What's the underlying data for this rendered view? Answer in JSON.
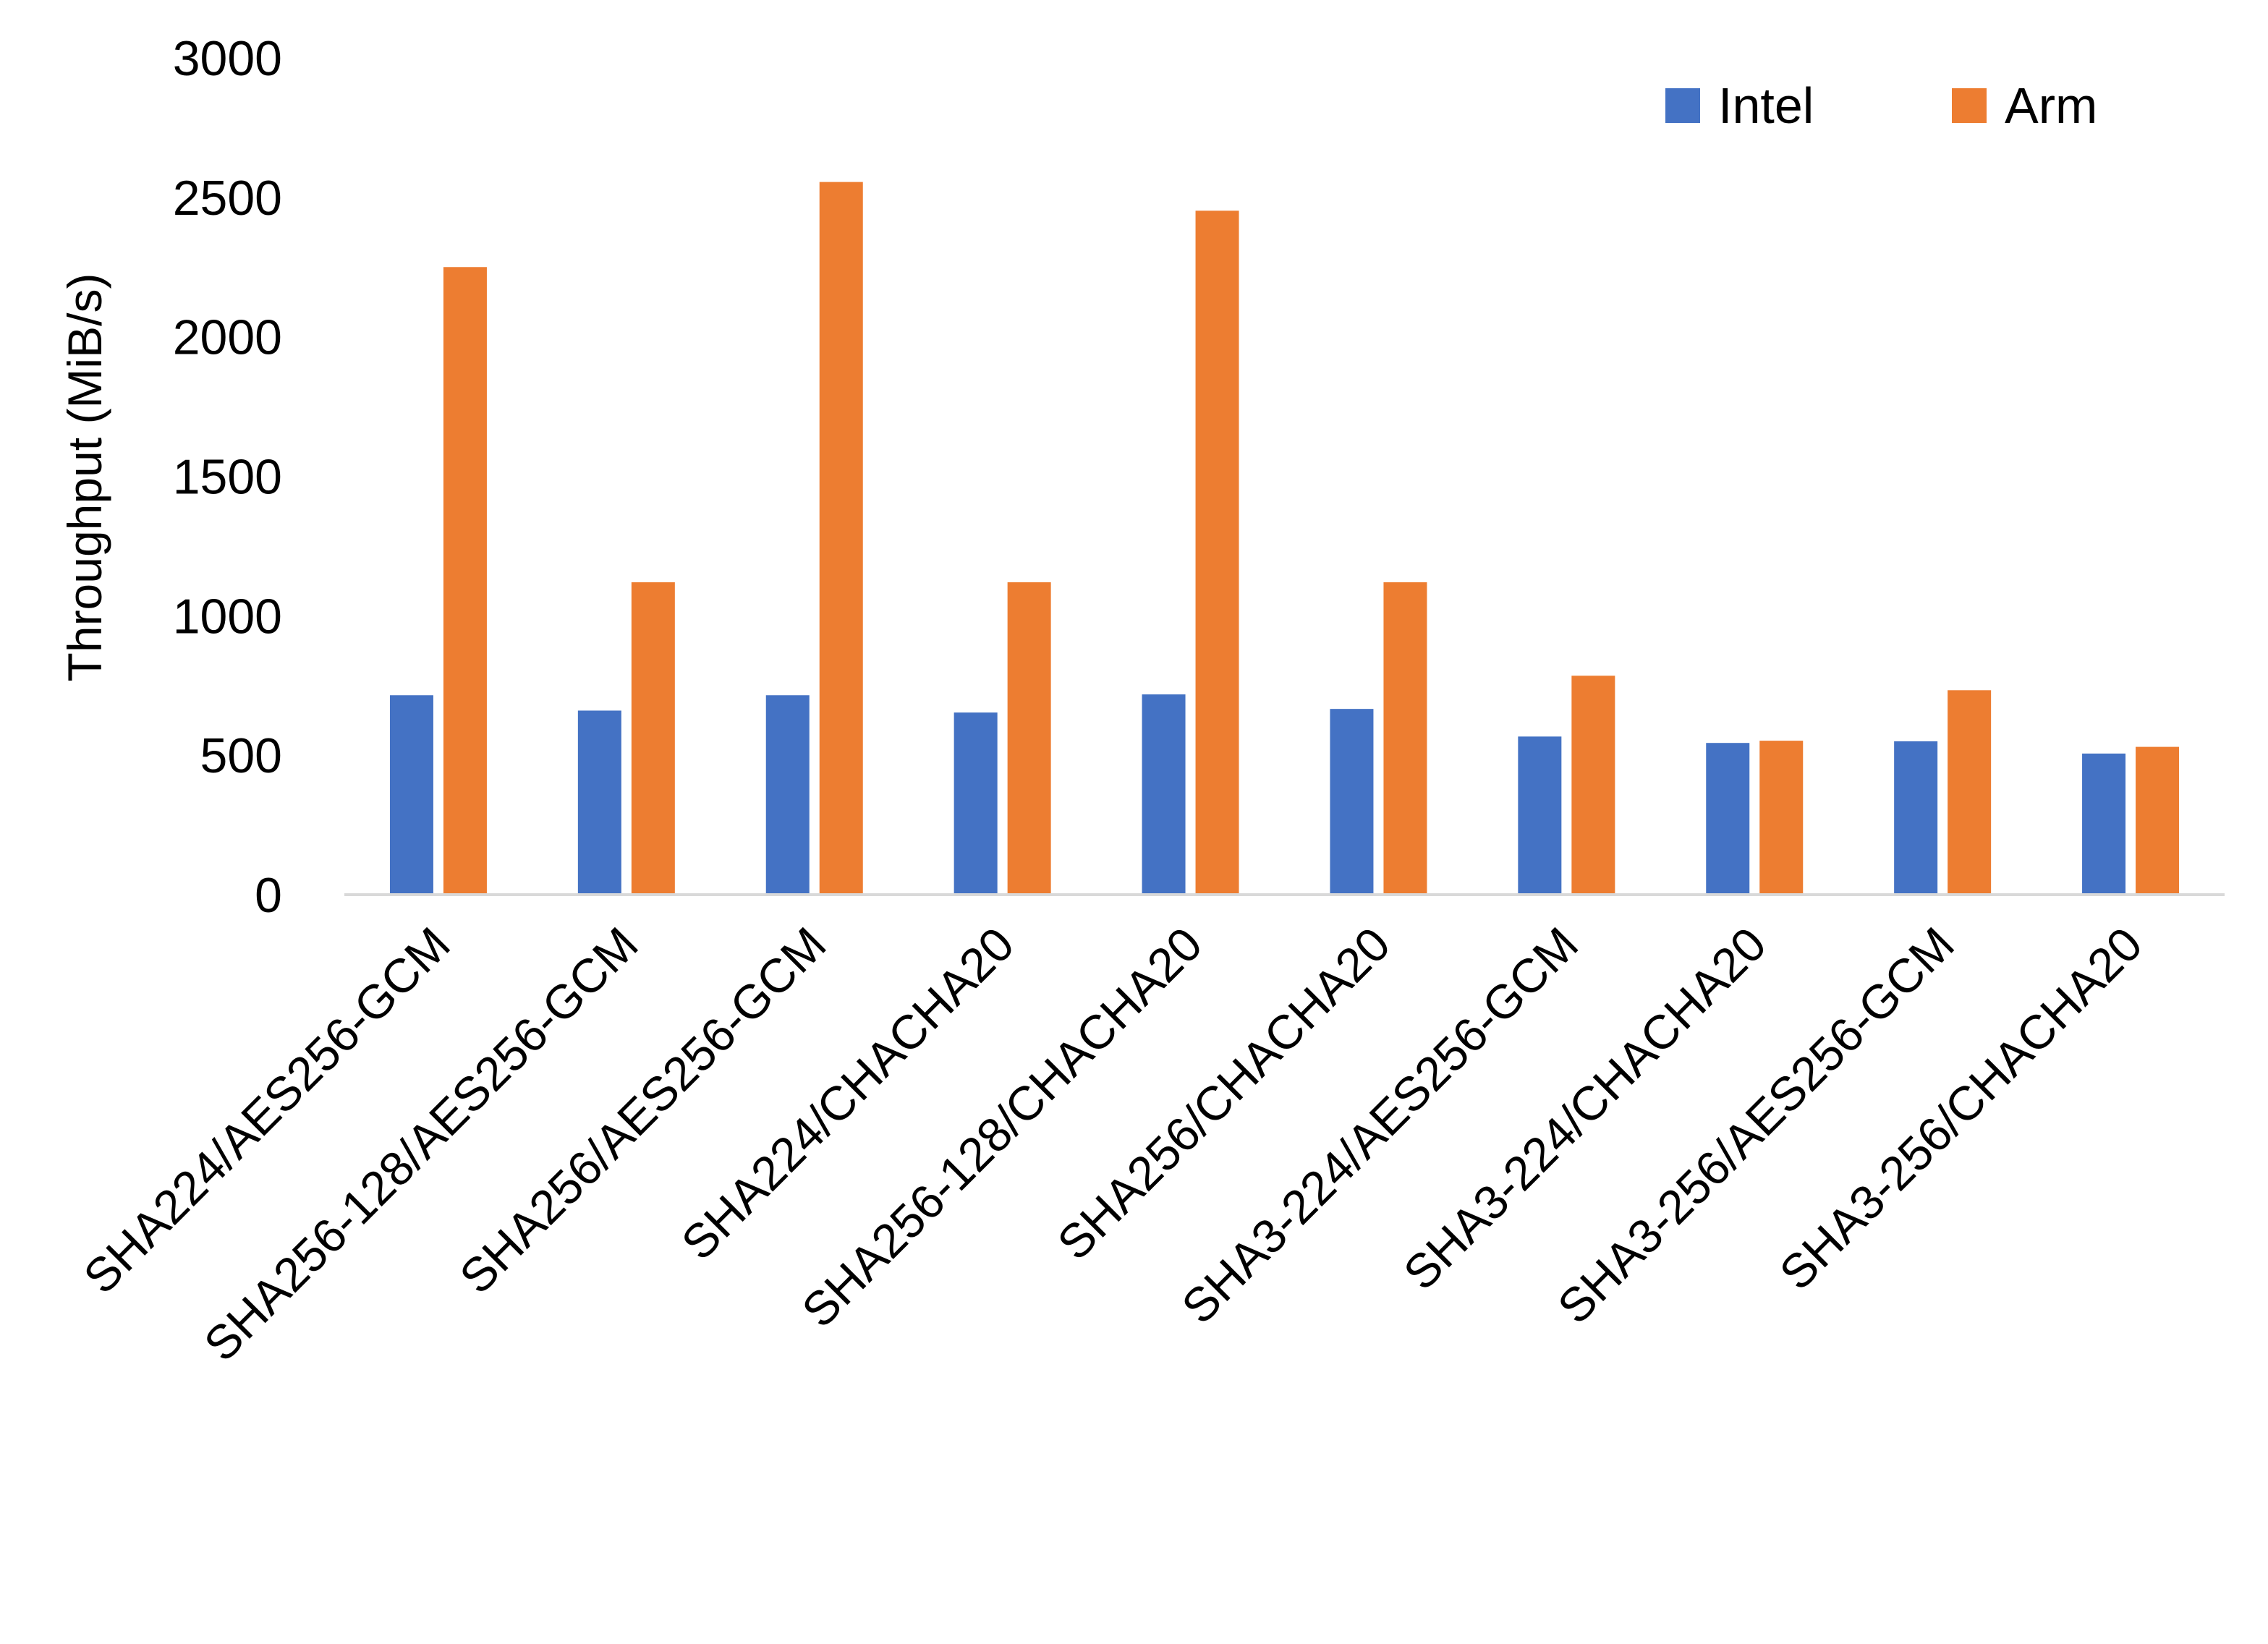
{
  "chart_data": {
    "type": "bar",
    "title": "",
    "xlabel": "",
    "ylabel": "Throughput (MiB/s)",
    "ylim": [
      0,
      3000
    ],
    "yticks": [
      "0",
      "500",
      "1000",
      "1500",
      "2000",
      "2500",
      "3000"
    ],
    "grid": false,
    "legend_position": "top-right",
    "categories": [
      "SHA224/AES256-GCM",
      "SHA256-128/AES256-GCM",
      "SHA256/AES256-GCM",
      "SHA224/CHACHA20",
      "SHA256-128/CHACHA20",
      "SHA256/CHACHA20",
      "SHA3-224/AES256-GCM",
      "SHA3-224/CHACHA20",
      "SHA3-256/AES256-GCM",
      "SHA3-256/CHACHA20"
    ],
    "series": [
      {
        "name": "Intel",
        "color": "#4472C4",
        "values": [
          715,
          660,
          715,
          653,
          718,
          666,
          567,
          544,
          550,
          506
        ]
      },
      {
        "name": "Arm",
        "color": "#ED7D31",
        "values": [
          2250,
          1120,
          2555,
          1120,
          2452,
          1120,
          785,
          552,
          733,
          530
        ]
      }
    ]
  }
}
